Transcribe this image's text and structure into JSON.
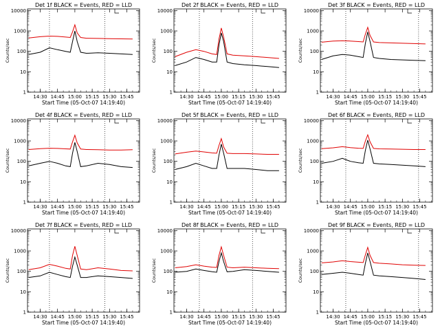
{
  "chart_data": [
    {
      "type": "line",
      "title": "Det 1f BLACK = Events, RED = LLD",
      "ylabel": "Counts/sec",
      "xlabel": "Start Time (05-Oct-07 14:19:40)",
      "xticks": [
        "14:30",
        "14:45",
        "15:00",
        "15:15",
        "15:30",
        "15:45"
      ],
      "yticks": [
        "1",
        "10",
        "100",
        "1000",
        "10000"
      ],
      "ylim": [
        1,
        12000
      ],
      "yscale": "log",
      "grid": false,
      "vlines": [
        "14:38",
        "15:26"
      ],
      "x": [
        "14:20",
        "14:30",
        "14:38",
        "14:45",
        "14:52",
        "14:56",
        "14:58",
        "15:00",
        "15:02",
        "15:05",
        "15:10",
        "15:20",
        "15:30",
        "15:40",
        "15:50"
      ],
      "series": [
        {
          "color": "#000000",
          "values": [
            70,
            90,
            150,
            120,
            100,
            90,
            300,
            1000,
            300,
            90,
            80,
            85,
            80,
            75,
            70
          ]
        },
        {
          "color": "#e00000",
          "values": [
            450,
            520,
            560,
            540,
            500,
            480,
            900,
            2000,
            800,
            480,
            440,
            430,
            420,
            410,
            400
          ]
        }
      ]
    },
    {
      "type": "line",
      "title": "Det 2f BLACK = Events, RED = LLD",
      "ylabel": "Counts/sec",
      "xlabel": "Start Time (05-Oct-07 14:19:40)",
      "xticks": [
        "14:30",
        "14:45",
        "15:00",
        "15:15",
        "15:30",
        "15:45"
      ],
      "yticks": [
        "1",
        "10",
        "100",
        "1000",
        "10000"
      ],
      "ylim": [
        1,
        12000
      ],
      "yscale": "log",
      "grid": false,
      "vlines": [
        "14:41",
        "15:27"
      ],
      "x": [
        "14:20",
        "14:30",
        "14:38",
        "14:45",
        "14:52",
        "14:56",
        "14:58",
        "15:00",
        "15:02",
        "15:05",
        "15:10",
        "15:20",
        "15:30",
        "15:40",
        "15:50"
      ],
      "series": [
        {
          "color": "#000000",
          "values": [
            20,
            30,
            50,
            40,
            30,
            30,
            200,
            800,
            300,
            30,
            25,
            22,
            20,
            18,
            16
          ]
        },
        {
          "color": "#e00000",
          "values": [
            55,
            90,
            120,
            100,
            75,
            70,
            400,
            1400,
            500,
            75,
            65,
            60,
            55,
            50,
            45
          ]
        }
      ]
    },
    {
      "type": "line",
      "title": "Det 3f BLACK = Events, RED = LLD",
      "ylabel": "Counts/sec",
      "xlabel": "Start Time (05-Oct-07 14:19:40)",
      "xticks": [
        "14:30",
        "14:45",
        "15:00",
        "15:15",
        "15:30",
        "15:45"
      ],
      "yticks": [
        "1",
        "10",
        "100",
        "1000",
        "10000"
      ],
      "ylim": [
        1,
        12000
      ],
      "yscale": "log",
      "grid": false,
      "vlines": [
        "14:41",
        "15:44"
      ],
      "x": [
        "14:20",
        "14:30",
        "14:38",
        "14:45",
        "14:52",
        "14:56",
        "14:58",
        "15:00",
        "15:02",
        "15:05",
        "15:10",
        "15:20",
        "15:30",
        "15:40",
        "15:50"
      ],
      "series": [
        {
          "color": "#000000",
          "values": [
            40,
            60,
            70,
            65,
            55,
            50,
            250,
            900,
            300,
            50,
            45,
            40,
            38,
            36,
            35
          ]
        },
        {
          "color": "#e00000",
          "values": [
            280,
            320,
            330,
            320,
            300,
            290,
            700,
            1500,
            600,
            290,
            270,
            260,
            250,
            240,
            230
          ]
        }
      ]
    },
    {
      "type": "line",
      "title": "Det 4f BLACK = Events, RED = LLD",
      "ylabel": "Counts/sec",
      "xlabel": "Start Time (05-Oct-07 14:19:40)",
      "xticks": [
        "14:30",
        "14:45",
        "15:00",
        "15:15",
        "15:30",
        "15:45"
      ],
      "yticks": [
        "1",
        "10",
        "100",
        "1000",
        "10000"
      ],
      "ylim": [
        1,
        12000
      ],
      "yscale": "log",
      "grid": false,
      "vlines": [
        "14:38",
        "15:26"
      ],
      "x": [
        "14:20",
        "14:30",
        "14:38",
        "14:45",
        "14:52",
        "14:56",
        "14:58",
        "15:00",
        "15:02",
        "15:05",
        "15:10",
        "15:20",
        "15:30",
        "15:40",
        "15:50"
      ],
      "series": [
        {
          "color": "#000000",
          "values": [
            60,
            80,
            100,
            80,
            60,
            55,
            250,
            850,
            300,
            55,
            60,
            80,
            70,
            55,
            50
          ]
        },
        {
          "color": "#e00000",
          "values": [
            380,
            420,
            440,
            430,
            410,
            400,
            900,
            1900,
            800,
            400,
            380,
            370,
            360,
            360,
            370
          ]
        }
      ]
    },
    {
      "type": "line",
      "title": "Det 5f BLACK = Events, RED = LLD",
      "ylabel": "Counts/sec",
      "xlabel": "Start Time (05-Oct-07 14:19:40)",
      "xticks": [
        "14:30",
        "14:45",
        "15:00",
        "15:15",
        "15:30",
        "15:45"
      ],
      "yticks": [
        "1",
        "10",
        "100",
        "1000",
        "10000"
      ],
      "ylim": [
        1,
        12000
      ],
      "yscale": "log",
      "grid": false,
      "vlines": [
        "14:41",
        "15:27"
      ],
      "x": [
        "14:20",
        "14:30",
        "14:38",
        "14:45",
        "14:52",
        "14:56",
        "14:58",
        "15:00",
        "15:02",
        "15:05",
        "15:10",
        "15:20",
        "15:30",
        "15:40",
        "15:50"
      ],
      "series": [
        {
          "color": "#000000",
          "values": [
            40,
            55,
            80,
            60,
            45,
            45,
            200,
            700,
            250,
            45,
            45,
            45,
            40,
            35,
            35
          ]
        },
        {
          "color": "#e00000",
          "values": [
            230,
            280,
            320,
            290,
            260,
            250,
            600,
            1300,
            500,
            250,
            240,
            240,
            230,
            220,
            220
          ]
        }
      ]
    },
    {
      "type": "line",
      "title": "Det 6f BLACK = Events, RED = LLD",
      "ylabel": "Counts/sec",
      "xlabel": "Start Time (05-Oct-07 14:19:40)",
      "xticks": [
        "14:30",
        "14:45",
        "15:00",
        "15:15",
        "15:30",
        "15:45"
      ],
      "yticks": [
        "1",
        "10",
        "100",
        "1000",
        "10000"
      ],
      "ylim": [
        1,
        12000
      ],
      "yscale": "log",
      "grid": false,
      "vlines": [
        "14:41",
        "15:44"
      ],
      "x": [
        "14:20",
        "14:30",
        "14:38",
        "14:45",
        "14:52",
        "14:56",
        "14:58",
        "15:00",
        "15:02",
        "15:05",
        "15:10",
        "15:20",
        "15:30",
        "15:40",
        "15:50"
      ],
      "series": [
        {
          "color": "#000000",
          "values": [
            80,
            100,
            140,
            100,
            85,
            80,
            350,
            1100,
            400,
            80,
            75,
            70,
            65,
            60,
            55
          ]
        },
        {
          "color": "#e00000",
          "values": [
            420,
            460,
            520,
            470,
            440,
            430,
            1000,
            2000,
            900,
            430,
            410,
            400,
            390,
            380,
            380
          ]
        }
      ]
    },
    {
      "type": "line",
      "title": "Det 7f BLACK = Events, RED = LLD",
      "ylabel": "Counts/sec",
      "xlabel": "Start Time (05-Oct-07 14:19:40)",
      "xticks": [
        "14:30",
        "14:45",
        "15:00",
        "15:15",
        "15:30",
        "15:45"
      ],
      "yticks": [
        "1",
        "10",
        "100",
        "1000",
        "10000"
      ],
      "ylim": [
        1,
        12000
      ],
      "yscale": "log",
      "grid": false,
      "vlines": [
        "14:38",
        "15:26"
      ],
      "x": [
        "14:20",
        "14:30",
        "14:38",
        "14:45",
        "14:52",
        "14:56",
        "14:58",
        "15:00",
        "15:02",
        "15:05",
        "15:10",
        "15:20",
        "15:30",
        "15:40",
        "15:50"
      ],
      "series": [
        {
          "color": "#000000",
          "values": [
            50,
            60,
            90,
            70,
            55,
            50,
            180,
            500,
            200,
            50,
            50,
            60,
            55,
            50,
            45
          ]
        },
        {
          "color": "#e00000",
          "values": [
            120,
            150,
            220,
            180,
            140,
            130,
            600,
            1700,
            600,
            130,
            120,
            150,
            130,
            110,
            105
          ]
        }
      ]
    },
    {
      "type": "line",
      "title": "Det 8f BLACK = Events, RED = LLD",
      "ylabel": "Counts/sec",
      "xlabel": "Start Time (05-Oct-07 14:19:40)",
      "xticks": [
        "14:30",
        "14:45",
        "15:00",
        "15:15",
        "15:30",
        "15:45"
      ],
      "yticks": [
        "1",
        "10",
        "100",
        "1000",
        "10000"
      ],
      "ylim": [
        1,
        12000
      ],
      "yscale": "log",
      "grid": false,
      "vlines": [
        "14:41",
        "15:27"
      ],
      "x": [
        "14:20",
        "14:30",
        "14:38",
        "14:45",
        "14:52",
        "14:56",
        "14:58",
        "15:00",
        "15:02",
        "15:05",
        "15:10",
        "15:20",
        "15:30",
        "15:40",
        "15:50"
      ],
      "series": [
        {
          "color": "#000000",
          "values": [
            90,
            100,
            130,
            110,
            95,
            90,
            300,
            800,
            300,
            95,
            100,
            120,
            110,
            100,
            90
          ]
        },
        {
          "color": "#e00000",
          "values": [
            150,
            170,
            210,
            180,
            160,
            155,
            600,
            1600,
            600,
            160,
            150,
            160,
            150,
            140,
            135
          ]
        }
      ]
    },
    {
      "type": "line",
      "title": "Det 9f BLACK = Events, RED = LLD",
      "ylabel": "Counts/sec",
      "xlabel": "Start Time (05-Oct-07 14:19:40)",
      "xticks": [
        "14:30",
        "14:45",
        "15:00",
        "15:15",
        "15:30",
        "15:45"
      ],
      "yticks": [
        "1",
        "10",
        "100",
        "1000",
        "10000"
      ],
      "ylim": [
        1,
        12000
      ],
      "yscale": "log",
      "grid": false,
      "vlines": [
        "14:41",
        "15:44"
      ],
      "x": [
        "14:20",
        "14:30",
        "14:38",
        "14:45",
        "14:52",
        "14:56",
        "14:58",
        "15:00",
        "15:02",
        "15:05",
        "15:10",
        "15:20",
        "15:30",
        "15:40",
        "15:50"
      ],
      "series": [
        {
          "color": "#000000",
          "values": [
            70,
            80,
            90,
            80,
            70,
            65,
            250,
            800,
            300,
            65,
            60,
            55,
            50,
            45,
            40
          ]
        },
        {
          "color": "#e00000",
          "values": [
            260,
            290,
            330,
            300,
            280,
            270,
            650,
            1500,
            600,
            270,
            250,
            230,
            210,
            200,
            195
          ]
        }
      ]
    }
  ]
}
